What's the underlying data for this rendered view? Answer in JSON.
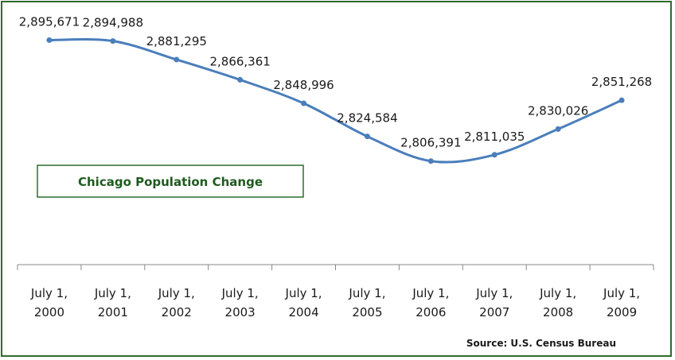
{
  "chart_data": {
    "type": "line",
    "title": "Chicago Population Change",
    "source": "Source: U.S. Census Bureau",
    "categories": [
      [
        "July 1,",
        "2000"
      ],
      [
        "July 1,",
        "2001"
      ],
      [
        "July 1,",
        "2002"
      ],
      [
        "July 1,",
        "2003"
      ],
      [
        "July 1,",
        "2004"
      ],
      [
        "July 1,",
        "2005"
      ],
      [
        "July 1,",
        "2006"
      ],
      [
        "July 1,",
        "2007"
      ],
      [
        "July 1,",
        "2008"
      ],
      [
        "July 1,",
        "2009"
      ]
    ],
    "values": [
      2895671,
      2894988,
      2881295,
      2866361,
      2848996,
      2824584,
      2806391,
      2811035,
      2830026,
      2851268
    ],
    "value_labels": [
      "2,895,671",
      "2,894,988",
      "2,881,295",
      "2,866,361",
      "2,848,996",
      "2,824,584",
      "2,806,391",
      "2,811,035",
      "2,830,026",
      "2,851,268"
    ],
    "ylim": [
      2730000,
      2910000
    ],
    "grid": false,
    "legend": "none",
    "series_color": "#4a7ebb",
    "title_color": "#1f5a1f",
    "border_color": "#2f6b2f"
  }
}
